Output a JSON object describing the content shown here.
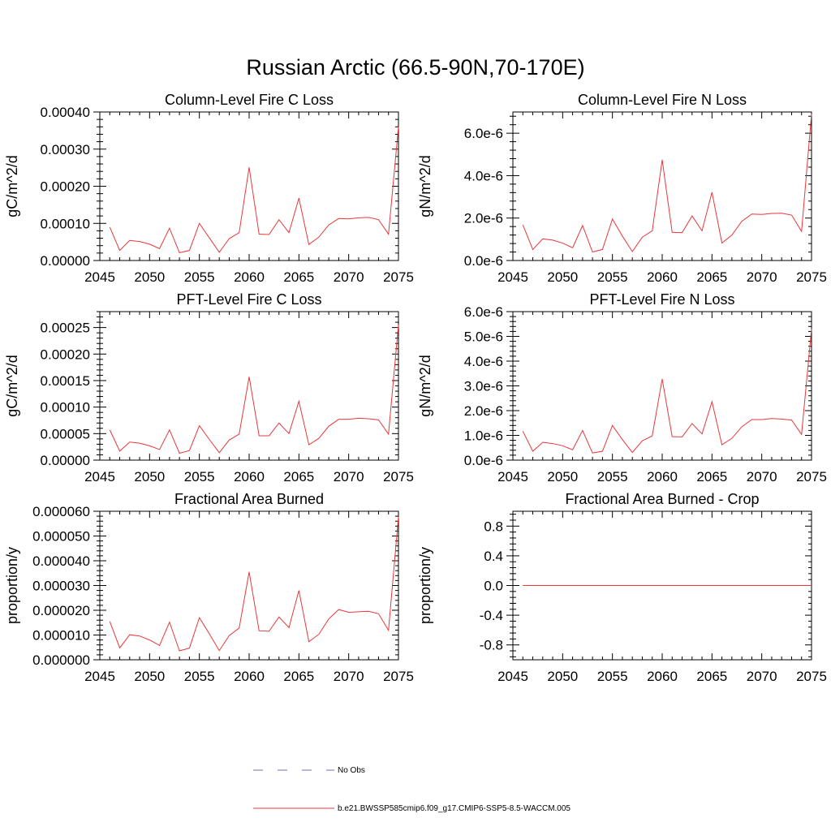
{
  "title": "Russian Arctic (66.5-90N,70-170E)",
  "legend": {
    "placement": "bottom",
    "items": [
      {
        "label": "No Obs",
        "color": "#6f6fb0",
        "dash": "dashed"
      },
      {
        "label": "b.e21.BWSSP585cmip6.f09_g17.CMIP6-SSP5-8.5-WACCM.005",
        "color": "#e8383b",
        "dash": "solid"
      }
    ]
  },
  "chart_data": [
    {
      "type": "line",
      "title": "Column-Level Fire C Loss",
      "ylabel": "gC/m^2/d",
      "xlim": [
        2045,
        2075
      ],
      "ylim": [
        0,
        0.0004
      ],
      "xticks": [
        2045,
        2050,
        2055,
        2060,
        2065,
        2070,
        2075
      ],
      "xtick_labels": [
        "2045",
        "2050",
        "2055",
        "2060",
        "2065",
        "2070",
        "2075"
      ],
      "yticks": [
        0,
        0.0001,
        0.0002,
        0.0003,
        0.0004
      ],
      "ytick_labels": [
        "0.00000",
        "0.00010",
        "0.00020",
        "0.00030",
        "0.00040"
      ],
      "series": [
        {
          "color": "#e8383b",
          "x": [
            2046,
            2047,
            2048,
            2049,
            2050,
            2051,
            2052,
            2053,
            2054,
            2055,
            2056,
            2057,
            2058,
            2059,
            2060,
            2061,
            2062,
            2063,
            2064,
            2065,
            2066,
            2067,
            2068,
            2069,
            2070,
            2071,
            2072,
            2073,
            2074,
            2075
          ],
          "y": [
            9e-05,
            2.7e-05,
            5.4e-05,
            5.1e-05,
            4.4e-05,
            3.2e-05,
            8.7e-05,
            2.1e-05,
            2.7e-05,
            0.0001,
            6.1e-05,
            2.2e-05,
            5.9e-05,
            7.5e-05,
            0.000251,
            7.1e-05,
            7e-05,
            0.00011,
            7.5e-05,
            0.000168,
            4.3e-05,
            6.3e-05,
            9.6e-05,
            0.000113,
            0.000112,
            0.000115,
            0.000116,
            0.00011,
            7.1e-05,
            0.00036
          ]
        }
      ]
    },
    {
      "type": "line",
      "title": "Column-Level Fire N Loss",
      "ylabel": "gN/m^2/d",
      "xlim": [
        2045,
        2075
      ],
      "ylim": [
        0,
        7e-06
      ],
      "xticks": [
        2045,
        2050,
        2055,
        2060,
        2065,
        2070,
        2075
      ],
      "xtick_labels": [
        "2045",
        "2050",
        "2055",
        "2060",
        "2065",
        "2070",
        "2075"
      ],
      "yticks": [
        0,
        2e-06,
        4e-06,
        6e-06
      ],
      "ytick_labels": [
        "0.0e-6",
        "2.0e-6",
        "4.0e-6",
        "6.0e-6"
      ],
      "series": [
        {
          "color": "#e8383b",
          "x": [
            2046,
            2047,
            2048,
            2049,
            2050,
            2051,
            2052,
            2053,
            2054,
            2055,
            2056,
            2057,
            2058,
            2059,
            2060,
            2061,
            2062,
            2063,
            2064,
            2065,
            2066,
            2067,
            2068,
            2069,
            2070,
            2071,
            2072,
            2073,
            2074,
            2075
          ],
          "y": [
            1.68e-06,
            5.2e-07,
            1.02e-06,
            9.6e-07,
            8.2e-07,
            6e-07,
            1.65e-06,
            4e-07,
            5.2e-07,
            1.95e-06,
            1.15e-06,
            4.2e-07,
            1.1e-06,
            1.4e-06,
            4.75e-06,
            1.33e-06,
            1.31e-06,
            2.1e-06,
            1.4e-06,
            3.22e-06,
            8.2e-07,
            1.2e-06,
            1.85e-06,
            2.19e-06,
            2.17e-06,
            2.22e-06,
            2.23e-06,
            2.14e-06,
            1.37e-06,
            6.9e-06
          ]
        }
      ]
    },
    {
      "type": "line",
      "title": "PFT-Level Fire C Loss",
      "ylabel": "gC/m^2/d",
      "xlim": [
        2045,
        2075
      ],
      "ylim": [
        0,
        0.00028
      ],
      "xticks": [
        2045,
        2050,
        2055,
        2060,
        2065,
        2070,
        2075
      ],
      "xtick_labels": [
        "2045",
        "2050",
        "2055",
        "2060",
        "2065",
        "2070",
        "2075"
      ],
      "yticks": [
        0,
        5e-05,
        0.0001,
        0.00015,
        0.0002,
        0.00025
      ],
      "ytick_labels": [
        "0.00000",
        "0.00005",
        "0.00010",
        "0.00015",
        "0.00020",
        "0.00025"
      ],
      "series": [
        {
          "color": "#e8383b",
          "x": [
            2046,
            2047,
            2048,
            2049,
            2050,
            2051,
            2052,
            2053,
            2054,
            2055,
            2056,
            2057,
            2058,
            2059,
            2060,
            2061,
            2062,
            2063,
            2064,
            2065,
            2066,
            2067,
            2068,
            2069,
            2070,
            2071,
            2072,
            2073,
            2074,
            2075
          ],
          "y": [
            5.7e-05,
            1.7e-05,
            3.4e-05,
            3.2e-05,
            2.7e-05,
            2e-05,
            5.7e-05,
            1.3e-05,
            1.8e-05,
            6.5e-05,
            3.9e-05,
            1.4e-05,
            3.8e-05,
            4.9e-05,
            0.000157,
            4.6e-05,
            4.6e-05,
            7e-05,
            5e-05,
            0.000111,
            2.9e-05,
            4.1e-05,
            6.4e-05,
            7.7e-05,
            7.7e-05,
            7.9e-05,
            7.8e-05,
            7.6e-05,
            4.9e-05,
            0.000255
          ]
        }
      ]
    },
    {
      "type": "line",
      "title": "PFT-Level Fire N Loss",
      "ylabel": "gN/m^2/d",
      "xlim": [
        2045,
        2075
      ],
      "ylim": [
        0,
        6e-06
      ],
      "xticks": [
        2045,
        2050,
        2055,
        2060,
        2065,
        2070,
        2075
      ],
      "xtick_labels": [
        "2045",
        "2050",
        "2055",
        "2060",
        "2065",
        "2070",
        "2075"
      ],
      "yticks": [
        0,
        1e-06,
        2e-06,
        3e-06,
        4e-06,
        5e-06,
        6e-06
      ],
      "ytick_labels": [
        "0.0e-6",
        "1.0e-6",
        "2.0e-6",
        "3.0e-6",
        "4.0e-6",
        "5.0e-6",
        "6.0e-6"
      ],
      "series": [
        {
          "color": "#e8383b",
          "x": [
            2046,
            2047,
            2048,
            2049,
            2050,
            2051,
            2052,
            2053,
            2054,
            2055,
            2056,
            2057,
            2058,
            2059,
            2060,
            2061,
            2062,
            2063,
            2064,
            2065,
            2066,
            2067,
            2068,
            2069,
            2070,
            2071,
            2072,
            2073,
            2074,
            2075
          ],
          "y": [
            1.17e-06,
            3.6e-07,
            7.2e-07,
            6.7e-07,
            5.8e-07,
            4.2e-07,
            1.2e-06,
            2.9e-07,
            3.6e-07,
            1.4e-06,
            8.3e-07,
            3.1e-07,
            7.8e-07,
            9.8e-07,
            3.28e-06,
            9.5e-07,
            9.4e-07,
            1.48e-06,
            1.06e-06,
            2.36e-06,
            6.2e-07,
            8.8e-07,
            1.35e-06,
            1.64e-06,
            1.64e-06,
            1.68e-06,
            1.66e-06,
            1.62e-06,
            1.04e-06,
            5.3e-06
          ]
        }
      ]
    },
    {
      "type": "line",
      "title": "Fractional Area Burned",
      "ylabel": "proportion/y",
      "xlim": [
        2045,
        2075
      ],
      "ylim": [
        0,
        6e-05
      ],
      "xticks": [
        2045,
        2050,
        2055,
        2060,
        2065,
        2070,
        2075
      ],
      "xtick_labels": [
        "2045",
        "2050",
        "2055",
        "2060",
        "2065",
        "2070",
        "2075"
      ],
      "yticks": [
        0,
        1e-05,
        2e-05,
        3e-05,
        4e-05,
        5e-05,
        6e-05
      ],
      "ytick_labels": [
        "0.000000",
        "0.000010",
        "0.000020",
        "0.000030",
        "0.000040",
        "0.000050",
        "0.000060"
      ],
      "series": [
        {
          "color": "#e8383b",
          "x": [
            2046,
            2047,
            2048,
            2049,
            2050,
            2051,
            2052,
            2053,
            2054,
            2055,
            2056,
            2057,
            2058,
            2059,
            2060,
            2061,
            2062,
            2063,
            2064,
            2065,
            2066,
            2067,
            2068,
            2069,
            2070,
            2071,
            2072,
            2073,
            2074,
            2075
          ],
          "y": [
            1.55e-05,
            4.8e-06,
            1.01e-05,
            9.6e-06,
            8e-06,
            5.8e-06,
            1.52e-05,
            3.6e-06,
            4.7e-06,
            1.7e-05,
            1.05e-05,
            3.7e-06,
            9.8e-06,
            1.28e-05,
            3.55e-05,
            1.17e-05,
            1.15e-05,
            1.73e-05,
            1.3e-05,
            2.8e-05,
            7.3e-06,
            1.03e-05,
            1.65e-05,
            2.03e-05,
            1.92e-05,
            1.94e-05,
            1.96e-05,
            1.86e-05,
            1.19e-05,
            5.78e-05
          ]
        }
      ]
    },
    {
      "type": "line",
      "title": "Fractional Area Burned - Crop",
      "ylabel": "proportion/y",
      "xlim": [
        2045,
        2075
      ],
      "ylim": [
        -1,
        1
      ],
      "xticks": [
        2045,
        2050,
        2055,
        2060,
        2065,
        2070,
        2075
      ],
      "xtick_labels": [
        "2045",
        "2050",
        "2055",
        "2060",
        "2065",
        "2070",
        "2075"
      ],
      "yticks": [
        -0.8,
        -0.4,
        0,
        0.4,
        0.8
      ],
      "ytick_labels": [
        "-0.8",
        "-0.4",
        "0.0",
        "0.4",
        "0.8"
      ],
      "series": [
        {
          "color": "#e8383b",
          "x": [
            2046,
            2075
          ],
          "y": [
            0,
            0
          ]
        }
      ]
    }
  ]
}
